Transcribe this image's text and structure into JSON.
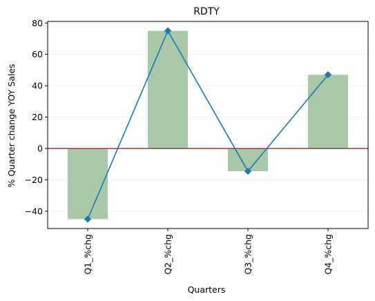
{
  "chart_data": {
    "type": "bar",
    "title": "RDTY",
    "xlabel": "Quarters",
    "ylabel": "% Quarter change YOY Sales",
    "categories": [
      "Q1_%chg",
      "Q2_%chg",
      "Q3_%chg",
      "Q4_%chg"
    ],
    "values": [
      -45,
      75,
      -14.5,
      47
    ],
    "line_values": [
      -45,
      75,
      -14.5,
      47
    ],
    "ylim": [
      -51,
      81
    ],
    "yticks": [
      -40,
      -20,
      0,
      20,
      40,
      60,
      80
    ],
    "grid": "horizontal",
    "zero_line": true,
    "colors": {
      "bars": "#a8c9a8",
      "line": "#1f77b4",
      "markers": "#1f77b4",
      "zero_line": "#9a3b3b",
      "grid": "#ececec",
      "axes": "#000000"
    }
  }
}
